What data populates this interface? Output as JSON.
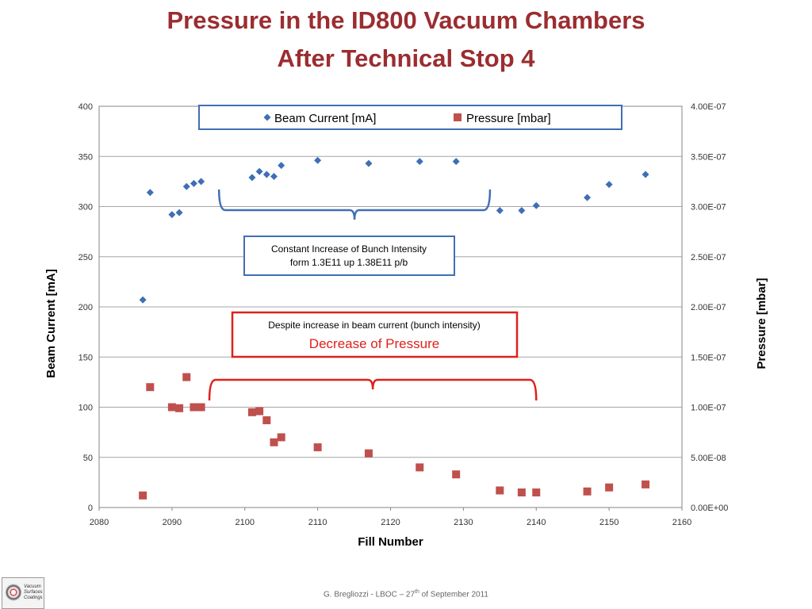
{
  "title_line1": "Pressure in the ID800 Vacuum Chambers",
  "title_line2": "After Technical Stop 4",
  "footer": {
    "main": "G. Bregliozzi - LBOC – 27",
    "sup": "th",
    "rest": " of September 2011"
  },
  "logo": {
    "line1": "Vacuum",
    "line2": "Surfaces",
    "line3": "Coatings"
  },
  "chart_data": {
    "type": "scatter",
    "title": "",
    "xlabel": "Fill Number",
    "ylabel_left": "Beam Current [mA]",
    "ylabel_right": "Pressure [mbar]",
    "xlim": [
      2080,
      2160
    ],
    "ylim_left": [
      0,
      400
    ],
    "ylim_right": [
      0,
      4e-07
    ],
    "x_ticks": [
      "2080",
      "2090",
      "2100",
      "2110",
      "2120",
      "2130",
      "2140",
      "2150",
      "2160"
    ],
    "y_left_ticks": [
      "0",
      "50",
      "100",
      "150",
      "200",
      "250",
      "300",
      "350",
      "400"
    ],
    "y_right_ticks": [
      "0.00E+00",
      "5.00E-08",
      "1.00E-07",
      "1.50E-07",
      "2.00E-07",
      "2.50E-07",
      "3.00E-07",
      "3.50E-07",
      "4.00E-07"
    ],
    "grid": true,
    "legend_position": "top",
    "series": [
      {
        "name": "Beam Current [mA]",
        "axis": "left",
        "marker": "diamond",
        "color": "#3f6fb4",
        "points": [
          [
            2086,
            207
          ],
          [
            2087,
            314
          ],
          [
            2090,
            292
          ],
          [
            2091,
            294
          ],
          [
            2092,
            320
          ],
          [
            2093,
            323
          ],
          [
            2094,
            325
          ],
          [
            2101,
            329
          ],
          [
            2102,
            335
          ],
          [
            2103,
            332
          ],
          [
            2104,
            330
          ],
          [
            2105,
            341
          ],
          [
            2110,
            346
          ],
          [
            2117,
            343
          ],
          [
            2124,
            345
          ],
          [
            2129,
            345
          ],
          [
            2135,
            296
          ],
          [
            2138,
            296
          ],
          [
            2140,
            301
          ],
          [
            2147,
            309
          ],
          [
            2150,
            322
          ],
          [
            2155,
            332
          ]
        ]
      },
      {
        "name": "Pressure [mbar]",
        "axis": "right",
        "marker": "square",
        "color": "#c0504d",
        "points": [
          [
            2086,
            1.2e-08
          ],
          [
            2087,
            1.2e-07
          ],
          [
            2090,
            1e-07
          ],
          [
            2091,
            9.9e-08
          ],
          [
            2092,
            1.3e-07
          ],
          [
            2093,
            1e-07
          ],
          [
            2094,
            1e-07
          ],
          [
            2101,
            9.5e-08
          ],
          [
            2102,
            9.6e-08
          ],
          [
            2103,
            8.7e-08
          ],
          [
            2104,
            6.5e-08
          ],
          [
            2105,
            7e-08
          ],
          [
            2110,
            6e-08
          ],
          [
            2117,
            5.4e-08
          ],
          [
            2124,
            4e-08
          ],
          [
            2129,
            3.3e-08
          ],
          [
            2135,
            1.7e-08
          ],
          [
            2138,
            1.5e-08
          ],
          [
            2140,
            1.5e-08
          ],
          [
            2147,
            1.6e-08
          ],
          [
            2150,
            2e-08
          ],
          [
            2155,
            2.3e-08
          ]
        ]
      }
    ],
    "annotations": [
      {
        "name": "bunch-intensity",
        "lines": [
          "Constant Increase of Bunch Intensity",
          "form 1.3E11 up 1.38E11 p/b"
        ],
        "box_color": "#3f6fb4",
        "text_color": "#000000",
        "bracket_from": 2097,
        "bracket_to": 2133
      },
      {
        "name": "pressure-decrease",
        "lines": [
          "Despite increase in beam current (bunch intensity)",
          "Decrease of Pressure"
        ],
        "box_color": "#e0201b",
        "text_color": "#000000",
        "highlight_color": "#e0201b",
        "bracket_from": 2096,
        "bracket_to": 2140
      }
    ]
  }
}
